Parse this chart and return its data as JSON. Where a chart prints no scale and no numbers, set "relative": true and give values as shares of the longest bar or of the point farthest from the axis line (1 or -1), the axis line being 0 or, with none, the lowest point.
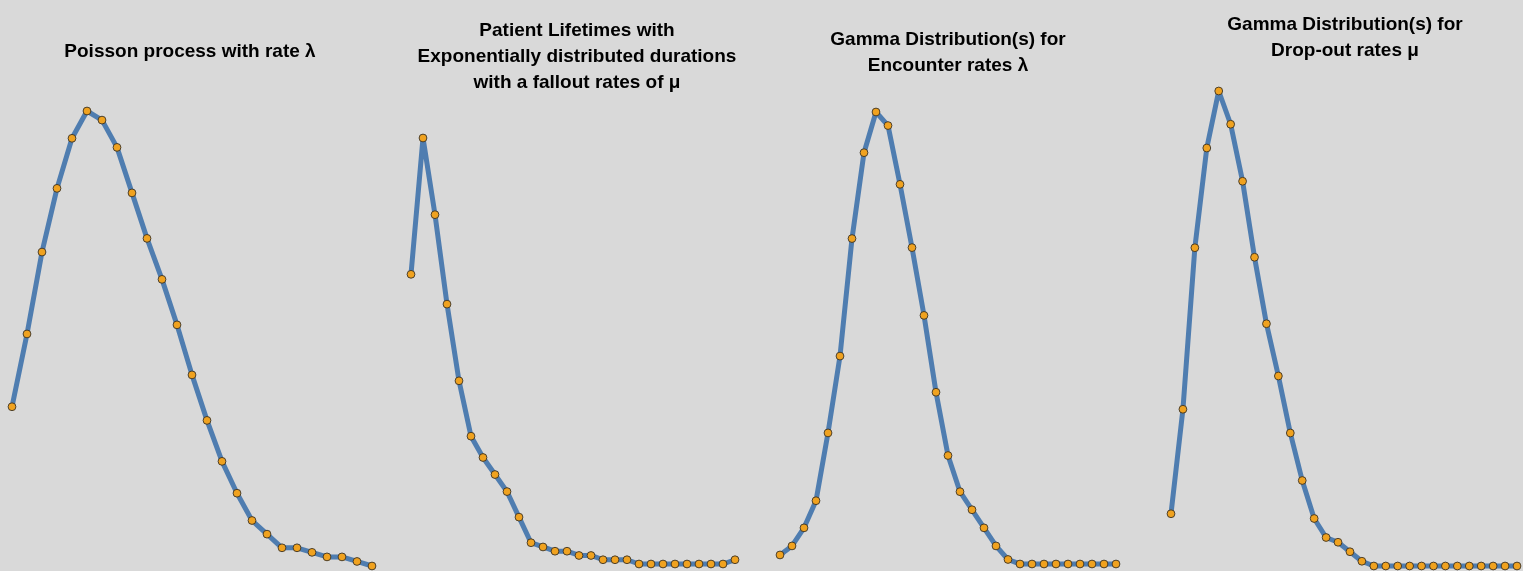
{
  "chart_data": [
    {
      "type": "line",
      "title": "Poisson process with rate λ",
      "relative": true,
      "marker": "circle",
      "categories": [
        null,
        null,
        null,
        null,
        null,
        null,
        null,
        null,
        null,
        null,
        null,
        null,
        null,
        null,
        null,
        null,
        null,
        null,
        null,
        null,
        null,
        null,
        null,
        null,
        null
      ],
      "series": [
        {
          "color": "#4f7db0",
          "values": [
            0.35,
            0.51,
            0.69,
            0.83,
            0.94,
            1.0,
            0.98,
            0.92,
            0.82,
            0.72,
            0.63,
            0.53,
            0.42,
            0.32,
            0.23,
            0.16,
            0.1,
            0.07,
            0.04,
            0.04,
            0.03,
            0.02,
            0.02,
            0.01,
            0
          ]
        }
      ]
    },
    {
      "type": "line",
      "title": "Patient Lifetimes with\nExponentially distributed durations\nwith a fallout rates of μ",
      "relative": true,
      "marker": "circle",
      "categories": [
        null,
        null,
        null,
        null,
        null,
        null,
        null,
        null,
        null,
        null,
        null,
        null,
        null,
        null,
        null,
        null,
        null,
        null,
        null,
        null,
        null,
        null,
        null,
        null,
        null,
        null,
        null,
        null
      ],
      "series": [
        {
          "color": "#4f7db0",
          "values": [
            0.68,
            1.0,
            0.82,
            0.61,
            0.43,
            0.3,
            0.25,
            0.21,
            0.17,
            0.11,
            0.05,
            0.04,
            0.03,
            0.03,
            0.02,
            0.02,
            0.01,
            0.01,
            0.01,
            0,
            0,
            0,
            0,
            0,
            0,
            0,
            0,
            0.01
          ]
        }
      ]
    },
    {
      "type": "line",
      "title": "Gamma Distribution(s) for\nEncounter rates λ",
      "relative": true,
      "marker": "circle",
      "categories": [
        null,
        null,
        null,
        null,
        null,
        null,
        null,
        null,
        null,
        null,
        null,
        null,
        null,
        null,
        null,
        null,
        null,
        null,
        null,
        null,
        null,
        null,
        null,
        null,
        null,
        null,
        null,
        null,
        null
      ],
      "series": [
        {
          "color": "#4f7db0",
          "values": [
            0.02,
            0.04,
            0.08,
            0.14,
            0.29,
            0.46,
            0.72,
            0.91,
            1.0,
            0.97,
            0.84,
            0.7,
            0.55,
            0.38,
            0.24,
            0.16,
            0.12,
            0.08,
            0.04,
            0.01,
            0,
            0,
            0,
            0,
            0,
            0,
            0,
            0,
            0
          ]
        }
      ]
    },
    {
      "type": "line",
      "title": "Gamma Distribution(s) for\nDrop-out rates  μ",
      "relative": true,
      "marker": "circle",
      "categories": [
        null,
        null,
        null,
        null,
        null,
        null,
        null,
        null,
        null,
        null,
        null,
        null,
        null,
        null,
        null,
        null,
        null,
        null,
        null,
        null,
        null,
        null,
        null,
        null,
        null,
        null,
        null,
        null,
        null,
        null
      ],
      "series": [
        {
          "color": "#4f7db0",
          "values": [
            0.11,
            0.33,
            0.67,
            0.88,
            1.0,
            0.93,
            0.81,
            0.65,
            0.51,
            0.4,
            0.28,
            0.18,
            0.1,
            0.06,
            0.05,
            0.03,
            0.01,
            0,
            0,
            0,
            0,
            0,
            0,
            0,
            0,
            0,
            0,
            0,
            0,
            0
          ]
        }
      ]
    }
  ]
}
